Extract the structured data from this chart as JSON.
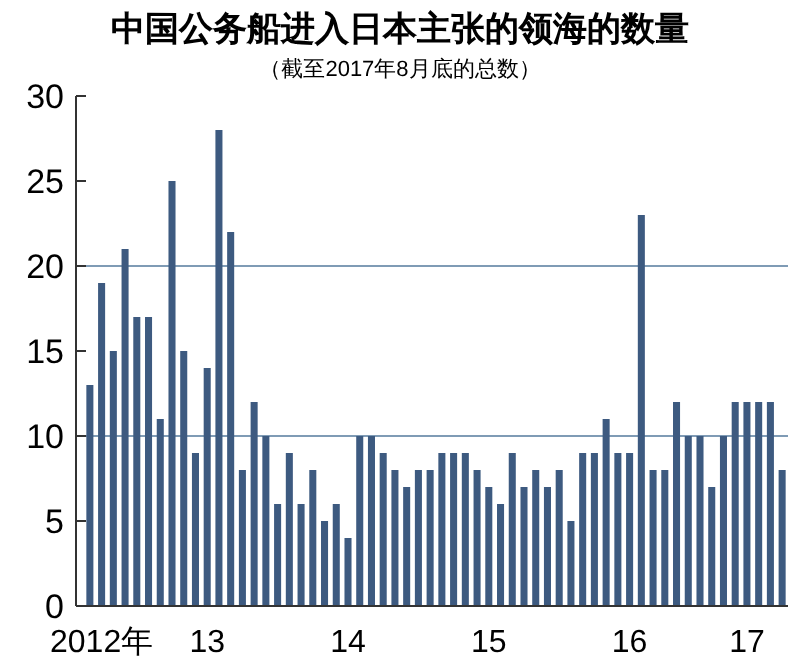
{
  "chart_data": {
    "type": "bar",
    "title": "中国公务船进入日本主张的领海的数量",
    "subtitle": "（截至2017年8月底的总数）",
    "categories": [
      null,
      "2012年",
      null,
      null,
      null,
      null,
      null,
      null,
      null,
      null,
      "13",
      null,
      null,
      null,
      null,
      null,
      null,
      null,
      null,
      null,
      null,
      null,
      "14",
      null,
      null,
      null,
      null,
      null,
      null,
      null,
      null,
      null,
      null,
      null,
      "15",
      null,
      null,
      null,
      null,
      null,
      null,
      null,
      null,
      null,
      null,
      null,
      "16",
      null,
      null,
      null,
      null,
      null,
      null,
      null,
      null,
      null,
      "17",
      null,
      null,
      null
    ],
    "values": [
      13,
      19,
      15,
      21,
      17,
      17,
      11,
      25,
      15,
      9,
      14,
      28,
      22,
      8,
      12,
      10,
      6,
      9,
      6,
      8,
      5,
      6,
      4,
      10,
      10,
      9,
      8,
      7,
      8,
      8,
      9,
      9,
      9,
      8,
      7,
      6,
      9,
      7,
      8,
      7,
      8,
      5,
      9,
      9,
      11,
      9,
      9,
      23,
      8,
      8,
      12,
      10,
      10,
      7,
      10,
      12,
      12,
      12,
      12,
      8
    ],
    "color": "#3d5a80",
    "ylim": [
      0,
      30
    ],
    "yticks": [
      0,
      5,
      10,
      15,
      20,
      25,
      30
    ],
    "ref_lines": [
      {
        "axis": "y",
        "value": 10,
        "color": "#7f9bb5"
      },
      {
        "axis": "y",
        "value": 20,
        "color": "#7f9bb5"
      }
    ]
  }
}
